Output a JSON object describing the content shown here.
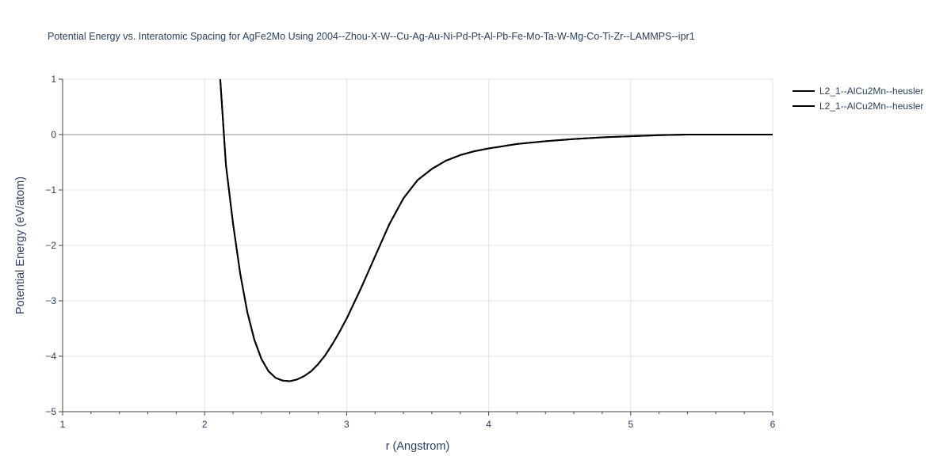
{
  "chart_data": {
    "type": "line",
    "title": "Potential Energy vs. Interatomic Spacing for AgFe2Mo Using 2004--Zhou-X-W--Cu-Ag-Au-Ni-Pd-Pt-Al-Pb-Fe-Mo-Ta-W-Mg-Co-Ti-Zr--LAMMPS--ipr1",
    "xlabel": "r (Angstrom)",
    "ylabel": "Potential Energy (eV/atom)",
    "xlim": [
      1,
      6
    ],
    "ylim": [
      -5,
      1
    ],
    "x_ticks": [
      "1",
      "2",
      "3",
      "4",
      "5",
      "6"
    ],
    "y_ticks": [
      "−5",
      "−4",
      "−3",
      "−2",
      "−1",
      "0",
      "1"
    ],
    "grid": true,
    "legend_position": "top-right",
    "colors": {
      "line": "#000000",
      "grid": "#e4e4e4",
      "zeroline": "#c8c8c8",
      "text": "#2a3f5f",
      "axis": "#444444"
    },
    "series": [
      {
        "name": "L2_1--AlCu2Mn--heusler",
        "x": [
          2.11,
          2.15,
          2.2,
          2.25,
          2.3,
          2.35,
          2.4,
          2.45,
          2.5,
          2.55,
          2.6,
          2.65,
          2.7,
          2.75,
          2.8,
          2.85,
          2.9,
          2.95,
          3.0,
          3.1,
          3.2,
          3.3,
          3.4,
          3.5,
          3.6,
          3.7,
          3.8,
          3.9,
          4.0,
          4.2,
          4.4,
          4.6,
          4.8,
          5.0,
          5.2,
          5.4,
          5.6,
          5.8,
          6.0
        ],
        "y": [
          1.0,
          -0.55,
          -1.6,
          -2.5,
          -3.2,
          -3.7,
          -4.05,
          -4.27,
          -4.39,
          -4.44,
          -4.45,
          -4.42,
          -4.36,
          -4.27,
          -4.14,
          -3.98,
          -3.78,
          -3.56,
          -3.32,
          -2.78,
          -2.2,
          -1.62,
          -1.15,
          -0.82,
          -0.62,
          -0.47,
          -0.37,
          -0.3,
          -0.25,
          -0.17,
          -0.12,
          -0.08,
          -0.05,
          -0.03,
          -0.01,
          0.0,
          0.0,
          0.0,
          0.0
        ]
      },
      {
        "name": "L2_1--AlCu2Mn--heusler",
        "x": [
          2.11,
          2.15,
          2.2,
          2.25,
          2.3,
          2.35,
          2.4,
          2.45,
          2.5,
          2.55,
          2.6,
          2.65,
          2.7,
          2.75,
          2.8,
          2.85,
          2.9,
          2.95,
          3.0,
          3.1,
          3.2,
          3.3,
          3.4,
          3.5,
          3.6,
          3.7,
          3.8,
          3.9,
          4.0,
          4.2,
          4.4,
          4.6,
          4.8,
          5.0,
          5.2,
          5.4,
          5.6,
          5.8,
          6.0
        ],
        "y": [
          1.0,
          -0.55,
          -1.6,
          -2.5,
          -3.2,
          -3.7,
          -4.05,
          -4.27,
          -4.39,
          -4.44,
          -4.45,
          -4.42,
          -4.36,
          -4.27,
          -4.14,
          -3.98,
          -3.78,
          -3.56,
          -3.32,
          -2.78,
          -2.2,
          -1.62,
          -1.15,
          -0.82,
          -0.62,
          -0.47,
          -0.37,
          -0.3,
          -0.25,
          -0.17,
          -0.12,
          -0.08,
          -0.05,
          -0.03,
          -0.01,
          0.0,
          0.0,
          0.0,
          0.0
        ]
      }
    ]
  }
}
